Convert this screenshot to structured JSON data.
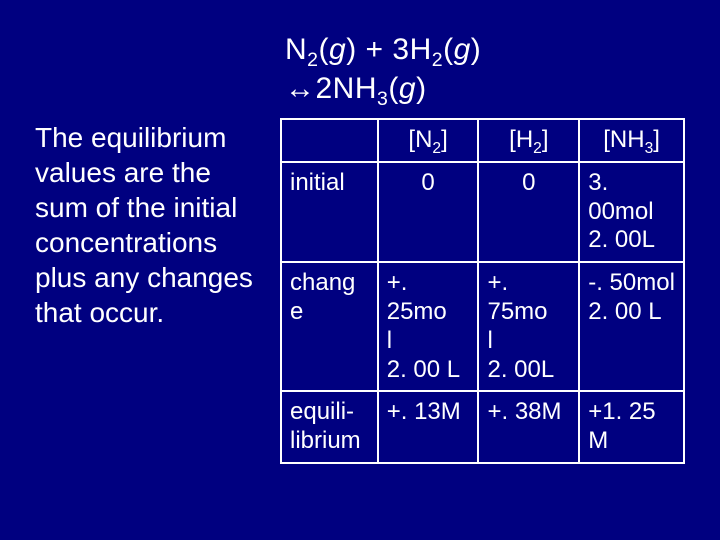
{
  "background_color": "#000080",
  "text_color": "#ffffff",
  "font_family": "Arial",
  "equation": {
    "line1_html": "N<sub>2</sub>(<span class='italic'>g</span>) + 3H<sub>2</sub>(<span class='italic'>g</span>)",
    "line2_html": "↔2NH<sub>3</sub>(<span class='italic'>g</span>)",
    "fontsize": 30
  },
  "left_paragraph": {
    "text": "The equilibrium values are the sum of the initial concentrations plus any changes that occur.",
    "fontsize": 28
  },
  "table": {
    "border_color": "#ffffff",
    "border_width": 2,
    "cell_fontsize": 24,
    "columns": [
      {
        "width_pct": 24
      },
      {
        "width_pct": 25
      },
      {
        "width_pct": 25
      },
      {
        "width_pct": 26
      }
    ],
    "rows": [
      {
        "cells": [
          {
            "html": "",
            "align": "left"
          },
          {
            "html": "[N<sub>2</sub>]",
            "align": "center"
          },
          {
            "html": "[H<sub>2</sub>]",
            "align": "center"
          },
          {
            "html": "[NH<sub>3</sub>]",
            "align": "center"
          }
        ]
      },
      {
        "cells": [
          {
            "html": "initial",
            "align": "left"
          },
          {
            "html": "0",
            "align": "center"
          },
          {
            "html": "0",
            "align": "center"
          },
          {
            "html": "3. 00mol<br>2. 00L",
            "align": "left"
          }
        ]
      },
      {
        "cells": [
          {
            "html": "chang<br>e",
            "align": "left"
          },
          {
            "html": "+. 25mo<br>l<br>2. 00 L",
            "align": "left"
          },
          {
            "html": "+. 75mo<br>l<br>2. 00L",
            "align": "left"
          },
          {
            "html": "-. 50mol<br>2. 00 L",
            "align": "left"
          }
        ]
      },
      {
        "cells": [
          {
            "html": "equili-<br>librium",
            "align": "left"
          },
          {
            "html": "+. 13M",
            "align": "left"
          },
          {
            "html": "+. 38M",
            "align": "left"
          },
          {
            "html": "+1. 25<br>M",
            "align": "left"
          }
        ]
      }
    ]
  }
}
